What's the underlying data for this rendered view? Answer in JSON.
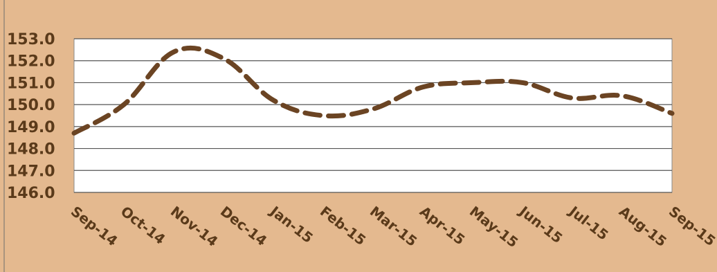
{
  "chart_data": {
    "type": "line",
    "categories": [
      "Sep-14",
      "Oct-14",
      "Nov-14",
      "Dec-14",
      "Jan-15",
      "Feb-15",
      "Mar-15",
      "Apr-15",
      "May-15",
      "Jun-15",
      "Jul-15",
      "Aug-15",
      "Sep-15"
    ],
    "series": [
      {
        "values": [
          148.7,
          150.0,
          152.4,
          152.1,
          150.2,
          149.5,
          149.8,
          150.8,
          151.0,
          151.0,
          150.3,
          150.4,
          149.6
        ],
        "color": "#6b4423",
        "line_style": "dashed"
      }
    ],
    "ylim": [
      146.0,
      153.0
    ],
    "yticks": [
      "146.0",
      "147.0",
      "148.0",
      "149.0",
      "150.0",
      "151.0",
      "152.0",
      "153.0"
    ],
    "grid": true,
    "legend": "none",
    "colors": {
      "background": "#e4b98f",
      "plot_area": "#ffffff",
      "grid": "#555555",
      "text": "#5a3a1a"
    }
  }
}
